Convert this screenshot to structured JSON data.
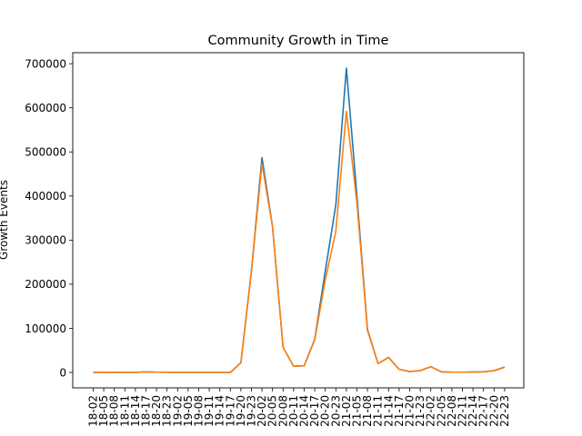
{
  "chart_data": {
    "type": "line",
    "title": "Community Growth in Time",
    "xlabel": "",
    "ylabel": "Growth Events",
    "ylim": [
      -35000,
      725000
    ],
    "yticks": [
      0,
      100000,
      200000,
      300000,
      400000,
      500000,
      600000,
      700000
    ],
    "grid": false,
    "legend": "none",
    "categories": [
      "18-02",
      "18-05",
      "18-08",
      "18-11",
      "18-14",
      "18-17",
      "18-20",
      "18-23",
      "19-02",
      "19-05",
      "19-08",
      "19-11",
      "19-14",
      "19-17",
      "19-20",
      "19-23",
      "20-02",
      "20-05",
      "20-08",
      "20-11",
      "20-14",
      "20-17",
      "20-20",
      "20-23",
      "21-02",
      "21-05",
      "21-08",
      "21-11",
      "21-14",
      "21-17",
      "21-20",
      "21-23",
      "22-02",
      "22-05",
      "22-08",
      "22-11",
      "22-14",
      "22-17",
      "22-20",
      "22-23"
    ],
    "x_labels_shown": [
      "18-02",
      "18-05",
      "18-08",
      "18-11",
      "18-14",
      "18-17",
      "18-20",
      "18-23",
      "19-02",
      "19-05",
      "19-08",
      "19-11",
      "19-14",
      "19-17",
      "19-20",
      "19-23",
      "20-02",
      "20-05",
      "20-08",
      "20-11",
      "20-14",
      "20-17",
      "20-20",
      "20-23",
      "21-02",
      "21-05",
      "21-08",
      "21-11",
      "21-14",
      "21-17",
      "21-20",
      "21-23",
      "22-02",
      "22-05",
      "22-08",
      "22-11",
      "22-14",
      "22-17",
      "22-20",
      "22-23"
    ],
    "series": [
      {
        "color": "#1f77b4",
        "values": [
          0,
          300,
          200,
          0,
          200,
          1200,
          500,
          300,
          0,
          0,
          0,
          0,
          0,
          0,
          22000,
          230000,
          487000,
          330000,
          57000,
          14000,
          15000,
          75000,
          230000,
          380000,
          690000,
          400000,
          97000,
          20000,
          34000,
          7000,
          2000,
          4000,
          13000,
          1500,
          500,
          500,
          1000,
          1500,
          4000,
          12000
        ]
      },
      {
        "color": "#ff7f0e",
        "values": [
          0,
          300,
          200,
          0,
          200,
          1200,
          500,
          300,
          0,
          0,
          0,
          0,
          0,
          0,
          22000,
          230000,
          473000,
          330000,
          57000,
          14000,
          15000,
          74000,
          210000,
          320000,
          592000,
          385000,
          95000,
          20000,
          34000,
          7000,
          2000,
          4000,
          13000,
          1500,
          500,
          500,
          1000,
          1500,
          4000,
          12000
        ]
      }
    ]
  }
}
